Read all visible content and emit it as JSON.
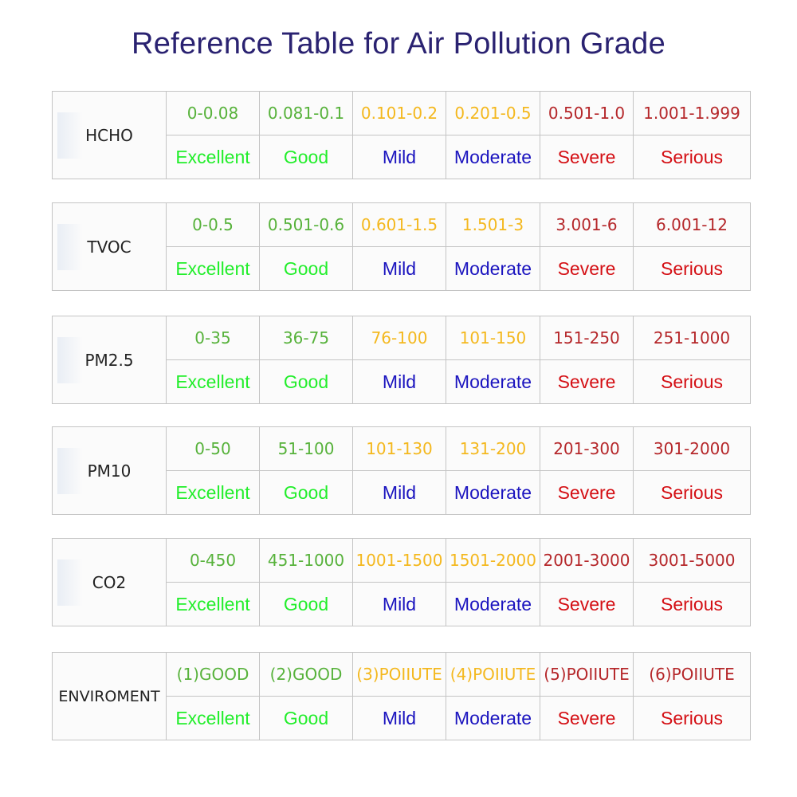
{
  "title": "Reference Table for Air Pollution Grade",
  "colors": {
    "title": "#2a2271",
    "excellent": "#22ee2b",
    "good": "#57b23b",
    "mild_range": "#f4b81e",
    "moderate": "#1b14bf",
    "severe": "#d40f14",
    "serious_range": "#b5272a"
  },
  "grades": [
    "Excellent",
    "Good",
    "Mild",
    "Moderate",
    "Severe",
    "Serious"
  ],
  "tables": [
    {
      "name": "HCHO",
      "ranges": [
        "0-0.08",
        "0.081-0.1",
        "0.101-0.2",
        "0.201-0.5",
        "0.501-1.0",
        "1.001-1.999"
      ]
    },
    {
      "name": "TVOC",
      "ranges": [
        "0-0.5",
        "0.501-0.6",
        "0.601-1.5",
        "1.501-3",
        "3.001-6",
        "6.001-12"
      ]
    },
    {
      "name": "PM2.5",
      "ranges": [
        "0-35",
        "36-75",
        "76-100",
        "101-150",
        "151-250",
        "251-1000"
      ]
    },
    {
      "name": "PM10",
      "ranges": [
        "0-50",
        "51-100",
        "101-130",
        "131-200",
        "201-300",
        "301-2000"
      ]
    },
    {
      "name": "CO2",
      "ranges": [
        "0-450",
        "451-1000",
        "1001-1500",
        "1501-2000",
        "2001-3000",
        "3001-5000"
      ]
    },
    {
      "name": "ENVIROMENT",
      "ranges": [
        "(1)GOOD",
        "(2)GOOD",
        "(3)POIIUTE",
        "(4)POIIUTE",
        "(5)POIIUTE",
        "(6)POIIUTE"
      ]
    }
  ]
}
